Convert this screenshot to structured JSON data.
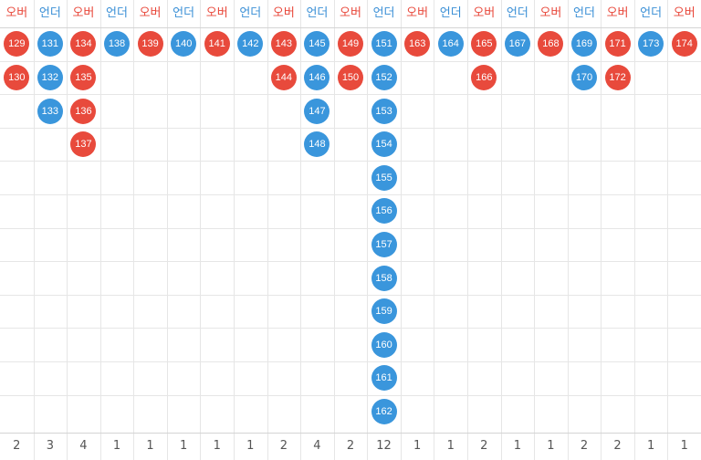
{
  "colors": {
    "over": "#e84a3c",
    "under": "#3a96dc",
    "grid": "#e6e6e6",
    "count_text": "#555555"
  },
  "columns": [
    {
      "label": "오버",
      "type": "over",
      "balls": [
        "129",
        "130"
      ],
      "count": "2"
    },
    {
      "label": "언더",
      "type": "under",
      "balls": [
        "131",
        "132",
        "133"
      ],
      "count": "3"
    },
    {
      "label": "오버",
      "type": "over",
      "balls": [
        "134",
        "135",
        "136",
        "137"
      ],
      "count": "4"
    },
    {
      "label": "언더",
      "type": "under",
      "balls": [
        "138"
      ],
      "count": "1"
    },
    {
      "label": "오버",
      "type": "over",
      "balls": [
        "139"
      ],
      "count": "1"
    },
    {
      "label": "언더",
      "type": "under",
      "balls": [
        "140"
      ],
      "count": "1"
    },
    {
      "label": "오버",
      "type": "over",
      "balls": [
        "141"
      ],
      "count": "1"
    },
    {
      "label": "언더",
      "type": "under",
      "balls": [
        "142"
      ],
      "count": "1"
    },
    {
      "label": "오버",
      "type": "over",
      "balls": [
        "143",
        "144"
      ],
      "count": "2"
    },
    {
      "label": "언더",
      "type": "under",
      "balls": [
        "145",
        "146",
        "147",
        "148"
      ],
      "count": "4"
    },
    {
      "label": "오버",
      "type": "over",
      "balls": [
        "149",
        "150"
      ],
      "count": "2"
    },
    {
      "label": "언더",
      "type": "under",
      "balls": [
        "151",
        "152",
        "153",
        "154",
        "155",
        "156",
        "157",
        "158",
        "159",
        "160",
        "161",
        "162"
      ],
      "count": "12"
    },
    {
      "label": "오버",
      "type": "over",
      "balls": [
        "163"
      ],
      "count": "1"
    },
    {
      "label": "언더",
      "type": "under",
      "balls": [
        "164"
      ],
      "count": "1"
    },
    {
      "label": "오버",
      "type": "over",
      "balls": [
        "165",
        "166"
      ],
      "count": "2"
    },
    {
      "label": "언더",
      "type": "under",
      "balls": [
        "167"
      ],
      "count": "1"
    },
    {
      "label": "오버",
      "type": "over",
      "balls": [
        "168"
      ],
      "count": "1"
    },
    {
      "label": "언더",
      "type": "under",
      "balls": [
        "169",
        "170"
      ],
      "count": "2"
    },
    {
      "label": "오버",
      "type": "over",
      "balls": [
        "171",
        "172"
      ],
      "count": "2"
    },
    {
      "label": "언더",
      "type": "under",
      "balls": [
        "173"
      ],
      "count": "1"
    },
    {
      "label": "오버",
      "type": "over",
      "balls": [
        "174"
      ],
      "count": "1"
    }
  ]
}
